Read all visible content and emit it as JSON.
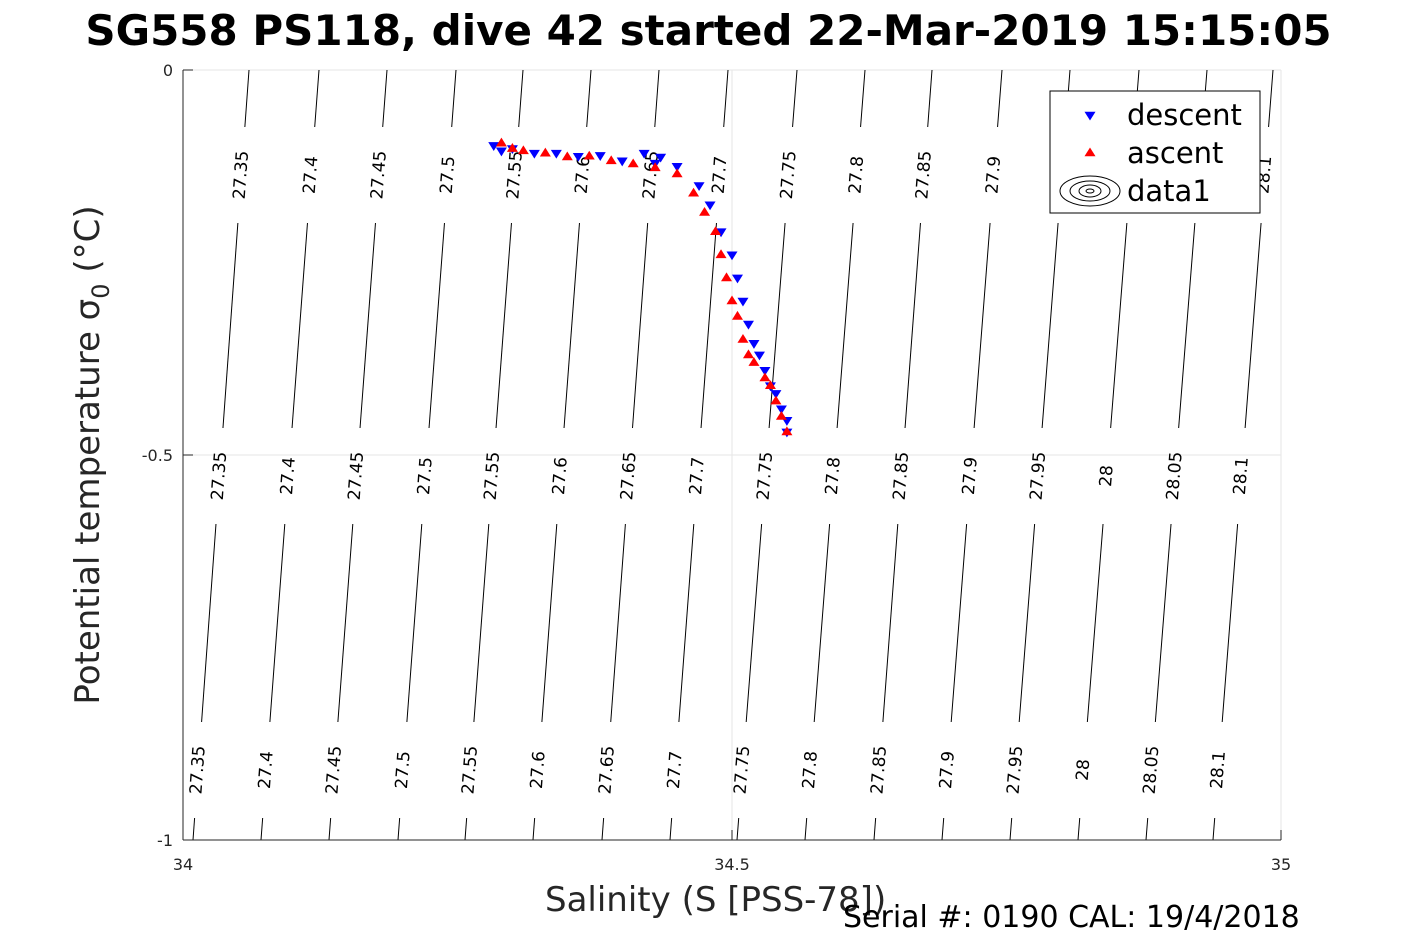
{
  "figure": {
    "title": "SG558 PS118, dive 42 started 22-Mar-2019 15:15:05",
    "footer": "Serial #: 0190  CAL: 19/4/2018"
  },
  "colors": {
    "descent": "#0000ff",
    "ascent": "#ff0000",
    "contour": "#000000",
    "grid": "#e6e6e6",
    "axis": "#262626"
  },
  "chart_data": {
    "type": "scatter",
    "xlabel": "Salinity (S [PSS-78])",
    "ylabel_main": "Potential temperature ",
    "ylabel_sigma": "σ",
    "ylabel_sub": "0",
    "ylabel_unit": " (°C)",
    "xlim": [
      34,
      35
    ],
    "ylim": [
      -1,
      0
    ],
    "xticks": [
      34,
      34.5,
      35
    ],
    "xtick_labels": [
      "34",
      "34.5",
      "35"
    ],
    "yticks": [
      0,
      -0.5,
      -1
    ],
    "ytick_labels": [
      "0",
      "-0.5",
      "-1"
    ],
    "grid": true,
    "legend": {
      "position": "top-right",
      "entries": [
        "descent",
        "ascent",
        "data1"
      ]
    },
    "density_contours": {
      "levels": [
        27.35,
        27.4,
        27.45,
        27.5,
        27.55,
        27.6,
        27.65,
        27.7,
        27.75,
        27.8,
        27.85,
        27.9,
        27.95,
        28,
        28.05,
        28.1
      ],
      "labels": [
        "27.35",
        "27.4",
        "27.45",
        "27.5",
        "27.55",
        "27.6",
        "27.65",
        "27.7",
        "27.75",
        "27.8",
        "27.85",
        "27.9",
        "27.95",
        "28",
        "28.05",
        "28.1"
      ]
    },
    "series": [
      {
        "name": "descent",
        "marker": "triangle-down",
        "x": [
          34.283,
          34.29,
          34.3,
          34.32,
          34.34,
          34.36,
          34.38,
          34.4,
          34.42,
          34.435,
          34.43,
          34.45,
          34.47,
          34.48,
          34.49,
          34.5,
          34.505,
          34.51,
          34.515,
          34.52,
          34.525,
          34.53,
          34.535,
          34.54,
          34.545,
          34.55,
          34.55
        ],
        "y": [
          -0.098,
          -0.105,
          -0.102,
          -0.108,
          -0.108,
          -0.112,
          -0.111,
          -0.118,
          -0.108,
          -0.113,
          -0.121,
          -0.125,
          -0.15,
          -0.175,
          -0.21,
          -0.24,
          -0.27,
          -0.3,
          -0.33,
          -0.355,
          -0.37,
          -0.39,
          -0.41,
          -0.42,
          -0.44,
          -0.455,
          -0.47
        ]
      },
      {
        "name": "ascent",
        "marker": "triangle-up",
        "x": [
          34.29,
          34.3,
          34.31,
          34.33,
          34.35,
          34.37,
          34.39,
          34.41,
          34.43,
          34.45,
          34.465,
          34.475,
          34.485,
          34.49,
          34.495,
          34.5,
          34.505,
          34.51,
          34.515,
          34.52,
          34.53,
          34.535,
          34.54,
          34.545,
          34.55
        ],
        "y": [
          -0.095,
          -0.102,
          -0.105,
          -0.108,
          -0.113,
          -0.112,
          -0.118,
          -0.122,
          -0.127,
          -0.135,
          -0.16,
          -0.185,
          -0.21,
          -0.24,
          -0.27,
          -0.3,
          -0.32,
          -0.35,
          -0.37,
          -0.38,
          -0.4,
          -0.41,
          -0.43,
          -0.45,
          -0.47
        ]
      }
    ]
  }
}
